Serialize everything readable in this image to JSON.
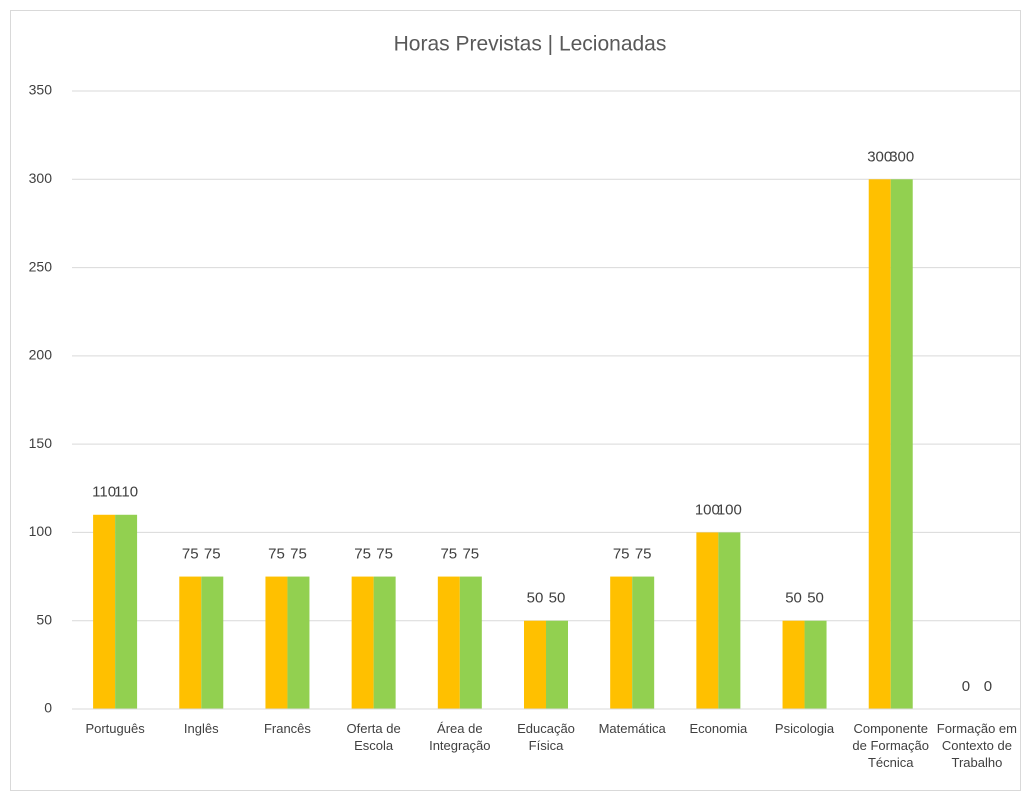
{
  "chart_data": {
    "type": "bar",
    "title": "Horas Previstas | Lecionadas",
    "categories": [
      "Português",
      "Inglês",
      "Francês",
      "Oferta de Escola",
      "Área de Integração",
      "Educação Física",
      "Matemática",
      "Economia",
      "Psicologia",
      "Componente de Formação Técnica",
      "Formação em Contexto de Trabalho"
    ],
    "series": [
      {
        "color": "#FFC000",
        "values": [
          110,
          75,
          75,
          75,
          75,
          50,
          75,
          100,
          50,
          300,
          0
        ]
      },
      {
        "color": "#92D050",
        "values": [
          110,
          75,
          75,
          75,
          75,
          50,
          75,
          100,
          50,
          300,
          0
        ]
      }
    ],
    "ylim": [
      0,
      350
    ],
    "yticks": [
      0,
      50,
      100,
      150,
      200,
      250,
      300,
      350
    ],
    "grid": true,
    "data_labels": true
  }
}
